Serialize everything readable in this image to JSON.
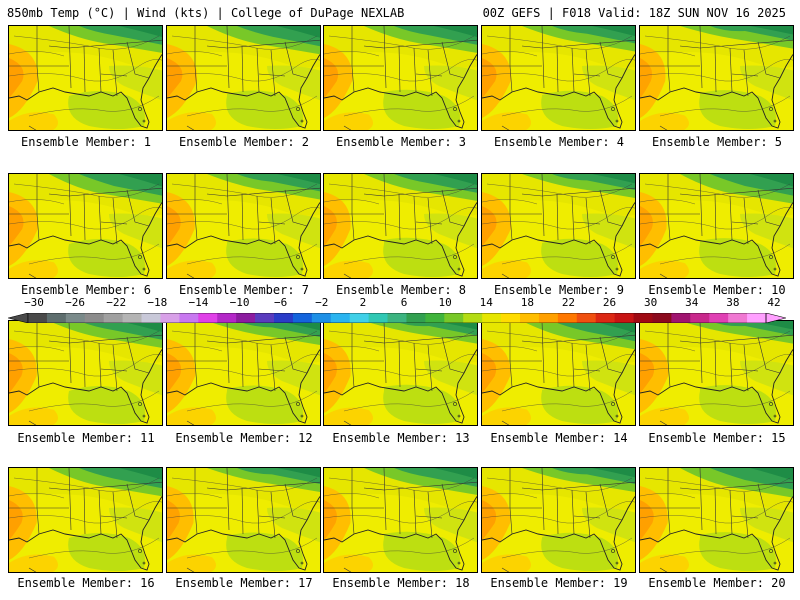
{
  "header": {
    "left": "850mb Temp (°C) | Wind (kts) | College of DuPage NEXLAB",
    "right": "00Z GEFS | F018 Valid: 18Z SUN NOV 16 2025"
  },
  "member_label_prefix": "Ensemble Member: ",
  "members": [
    {
      "label": "Ensemble Member: 1",
      "num": 1,
      "warm": 0.9,
      "cool_north": 0.8
    },
    {
      "label": "Ensemble Member: 2",
      "num": 2,
      "warm": 1.0,
      "cool_north": 0.9
    },
    {
      "label": "Ensemble Member: 3",
      "num": 3,
      "warm": 0.85,
      "cool_north": 0.8
    },
    {
      "label": "Ensemble Member: 4",
      "num": 4,
      "warm": 0.9,
      "cool_north": 0.7
    },
    {
      "label": "Ensemble Member: 5",
      "num": 5,
      "warm": 0.6,
      "cool_north": 0.5
    },
    {
      "label": "Ensemble Member: 6",
      "num": 6,
      "warm": 0.9,
      "cool_north": 1.0
    },
    {
      "label": "Ensemble Member: 7",
      "num": 7,
      "warm": 0.8,
      "cool_north": 0.7
    },
    {
      "label": "Ensemble Member: 8",
      "num": 8,
      "warm": 0.7,
      "cool_north": 0.8
    },
    {
      "label": "Ensemble Member: 9",
      "num": 9,
      "warm": 0.9,
      "cool_north": 0.6
    },
    {
      "label": "Ensemble Member: 10",
      "num": 10,
      "warm": 0.7,
      "cool_north": 1.0
    },
    {
      "label": "Ensemble Member: 11",
      "num": 11,
      "warm": 0.8,
      "cool_north": 0.8
    },
    {
      "label": "Ensemble Member: 12",
      "num": 12,
      "warm": 0.85,
      "cool_north": 0.6
    },
    {
      "label": "Ensemble Member: 13",
      "num": 13,
      "warm": 0.7,
      "cool_north": 0.5
    },
    {
      "label": "Ensemble Member: 14",
      "num": 14,
      "warm": 0.85,
      "cool_north": 0.9
    },
    {
      "label": "Ensemble Member: 15",
      "num": 15,
      "warm": 0.85,
      "cool_north": 0.5
    },
    {
      "label": "Ensemble Member: 16",
      "num": 16,
      "warm": 0.8,
      "cool_north": 0.9
    },
    {
      "label": "Ensemble Member: 17",
      "num": 17,
      "warm": 0.7,
      "cool_north": 0.6
    },
    {
      "label": "Ensemble Member: 18",
      "num": 18,
      "warm": 0.7,
      "cool_north": 0.8
    },
    {
      "label": "Ensemble Member: 19",
      "num": 19,
      "warm": 0.85,
      "cool_north": 0.6
    },
    {
      "label": "Ensemble Member: 20",
      "num": 20,
      "warm": 0.8,
      "cool_north": 1.0
    }
  ],
  "colorbar": {
    "unit": "°C",
    "ticks": [
      "-30",
      "-26",
      "-22",
      "-18",
      "-14",
      "-10",
      "-6",
      "-2",
      "2",
      "6",
      "10",
      "14",
      "18",
      "22",
      "26",
      "30",
      "34",
      "38",
      "42"
    ],
    "colors": [
      "#4a4a4a",
      "#5e6e6e",
      "#7a8a8a",
      "#8c8c8c",
      "#a0a0a0",
      "#b4b4b4",
      "#c8c8d8",
      "#d8a0e8",
      "#c878f0",
      "#e040e8",
      "#b428c8",
      "#8c1ca0",
      "#5a3cbe",
      "#2a3cc8",
      "#1464dc",
      "#1e90e6",
      "#2ab4f0",
      "#40d0e8",
      "#30c8b4",
      "#3cb480",
      "#32a050",
      "#40b43c",
      "#78c828",
      "#b4dc14",
      "#e6e600",
      "#ffdc00",
      "#ffbe00",
      "#ffa000",
      "#ff7800",
      "#f05010",
      "#dc2814",
      "#c81414",
      "#a00a14",
      "#8c0a1e",
      "#a01470",
      "#c8288c",
      "#e040b4",
      "#f078d2",
      "#ffa0ff"
    ]
  }
}
